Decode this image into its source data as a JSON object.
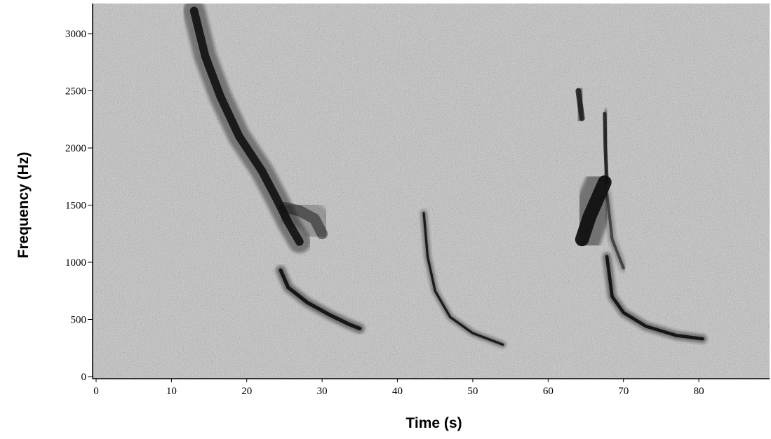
{
  "chart_data": {
    "type": "heatmap",
    "title": "",
    "xlabel": "Time (s)",
    "ylabel": "Frequency (Hz)",
    "xlim": [
      0,
      89
    ],
    "ylim": [
      0,
      3250
    ],
    "xticks": [
      0,
      10,
      20,
      30,
      40,
      50,
      60,
      70,
      80
    ],
    "yticks": [
      0,
      500,
      1000,
      1500,
      2000,
      2500,
      3000
    ],
    "colormap": "grayscale",
    "background_color": "#bdbdbd",
    "signal_color": "#111111",
    "grid": false,
    "legend": "none",
    "traces": [
      {
        "x": [
          13.0,
          14.5,
          16.5,
          19.0,
          22.0,
          24.0,
          25.5,
          27.0
        ],
        "y": [
          3200,
          2800,
          2450,
          2100,
          1800,
          1550,
          1350,
          1180
        ],
        "intensity": 0.9,
        "spread": 90
      },
      {
        "x": [
          25.0,
          27.0,
          29.0,
          30.0
        ],
        "y": [
          1480,
          1450,
          1380,
          1250
        ],
        "intensity": 0.5,
        "spread": 120
      },
      {
        "x": [
          24.5,
          25.5,
          28.0,
          31.0,
          33.5,
          35.0
        ],
        "y": [
          930,
          780,
          650,
          540,
          460,
          420
        ],
        "intensity": 0.95,
        "spread": 40
      },
      {
        "x": [
          43.5,
          44.0,
          45.0,
          47.0,
          50.0,
          54.0
        ],
        "y": [
          1430,
          1050,
          750,
          520,
          380,
          280
        ],
        "intensity": 0.9,
        "spread": 25
      },
      {
        "x": [
          64.0,
          64.5
        ],
        "y": [
          2500,
          2260
        ],
        "intensity": 0.8,
        "spread": 60
      },
      {
        "x": [
          64.5,
          65.5,
          66.5,
          67.5
        ],
        "y": [
          1200,
          1400,
          1550,
          1700
        ],
        "intensity": 0.95,
        "spread": 150
      },
      {
        "x": [
          67.5,
          67.6,
          67.8
        ],
        "y": [
          2300,
          2000,
          1700
        ],
        "intensity": 0.8,
        "spread": 40
      },
      {
        "x": [
          67.8,
          68.5,
          70.0
        ],
        "y": [
          1600,
          1200,
          950
        ],
        "intensity": 0.6,
        "spread": 30
      },
      {
        "x": [
          67.8,
          68.5,
          70.0,
          73.0,
          77.0,
          80.5
        ],
        "y": [
          1050,
          700,
          560,
          440,
          360,
          330
        ],
        "intensity": 0.95,
        "spread": 35
      }
    ]
  }
}
